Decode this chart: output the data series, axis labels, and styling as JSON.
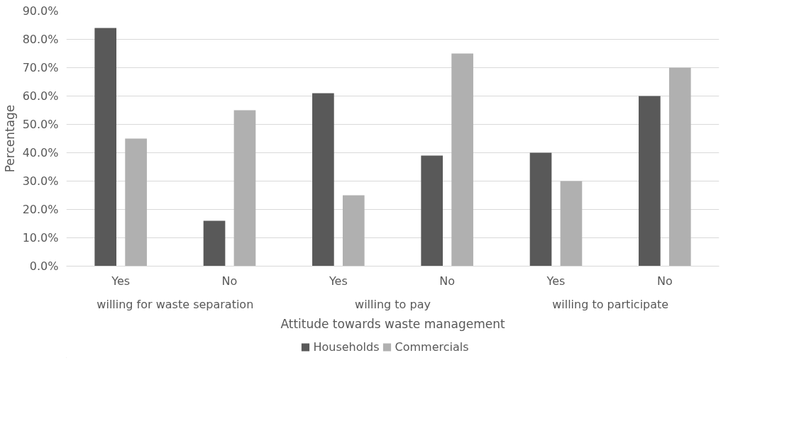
{
  "chart_data": {
    "type": "bar",
    "categories": [
      "Yes",
      "No",
      "Yes",
      "No",
      "Yes",
      "No"
    ],
    "series": [
      {
        "name": "Households",
        "color": "#595959",
        "values": [
          84,
          16,
          61,
          39,
          40,
          60
        ]
      },
      {
        "name": "Commercials",
        "color": "#b0b0b0",
        "values": [
          45,
          55,
          25,
          75,
          30,
          70
        ]
      }
    ],
    "annotations": [
      "willing for waste separation",
      "willing to pay",
      "willing to participate"
    ],
    "xlabel": "Attitude towards waste management",
    "ylabel": "Percentage",
    "ylim": [
      0,
      90
    ],
    "yticks": [
      {
        "value": 0,
        "label": "0.0%"
      },
      {
        "value": 10,
        "label": "10.0%"
      },
      {
        "value": 20,
        "label": "20.0%"
      },
      {
        "value": 30,
        "label": "30.0%"
      },
      {
        "value": 40,
        "label": "40.0%"
      },
      {
        "value": 50,
        "label": "50.0%"
      },
      {
        "value": 60,
        "label": "60.0%"
      },
      {
        "value": 70,
        "label": "70.0%"
      },
      {
        "value": 80,
        "label": "80.0%"
      },
      {
        "value": 90,
        "label": "90.0%"
      }
    ],
    "grid": "y",
    "legend": "bottom"
  }
}
